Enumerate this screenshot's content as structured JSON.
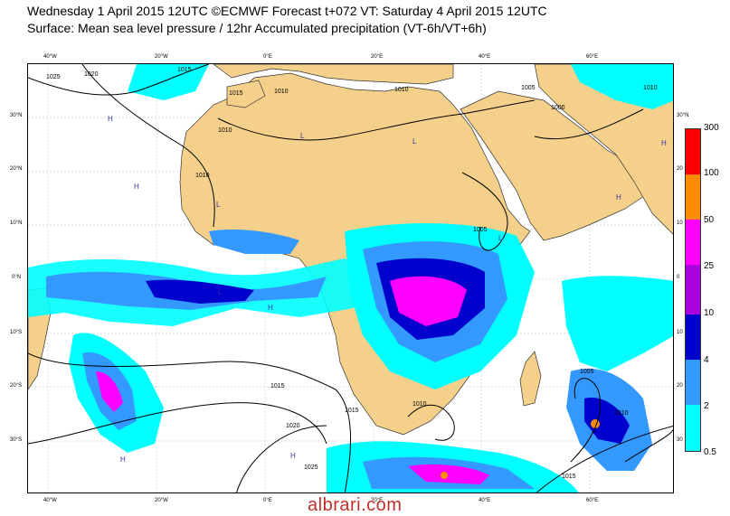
{
  "header": {
    "line1": "Wednesday 1 April 2015 12UTC ©ECMWF Forecast t+072 VT: Saturday 4 April 2015 12UTC",
    "line2": "Surface: Mean sea level pressure / 12hr Accumulated precipitation (VT-6h/VT+6h)"
  },
  "axes": {
    "lon_top": [
      "40°W",
      "20°W",
      "0°E",
      "20°E",
      "40°E",
      "60°E"
    ],
    "lon_bottom": [
      "40°W",
      "20°W",
      "0°E",
      "20°E",
      "40°E",
      "60°E"
    ],
    "lat_left": [
      "30°N",
      "20°N",
      "10°N",
      "0°N",
      "10°S",
      "20°S",
      "30°S"
    ],
    "lat_right": [
      "30°N",
      "20",
      "10",
      "0",
      "10",
      "20",
      "30"
    ]
  },
  "isobars": [
    "1025",
    "1020",
    "1015",
    "1010",
    "1010",
    "1015",
    "1010",
    "1005",
    "1000",
    "1010",
    "1005",
    "1010",
    "1015",
    "1020",
    "1025",
    "1015",
    "1010",
    "1005",
    "1010",
    "1015"
  ],
  "pressure_centres": [
    "H",
    "H",
    "H",
    "L",
    "L",
    "L",
    "H",
    "L",
    "H",
    "H",
    "H",
    "L"
  ],
  "legend": {
    "title": "12hr Accumulated precipitation",
    "levels": [
      "300",
      "100",
      "50",
      "25",
      "10",
      "4",
      "2",
      "0.5"
    ],
    "colors": [
      "#ff0000",
      "#ff8c00",
      "#ffffff",
      "#ff00ff",
      "#9900cc",
      "#0000cc",
      "#3399ff",
      "#00ffff"
    ]
  },
  "colors": {
    "land": "#f5d08a",
    "sea": "#ffffff",
    "isobar": "#000000"
  },
  "watermark": "albrari.com"
}
